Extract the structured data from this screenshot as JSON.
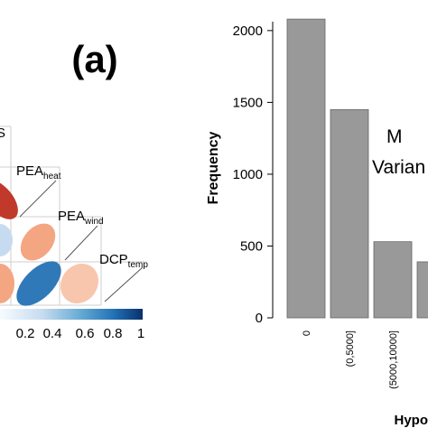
{
  "panel_label": "(a)",
  "correlation_plot": {
    "variables": [
      {
        "id": "s_partial",
        "label": "S"
      },
      {
        "id": "pea_heat",
        "label": "PEA",
        "sub": "heat"
      },
      {
        "id": "pea_wind",
        "label": "PEA",
        "sub": "wind"
      },
      {
        "id": "dcp_temp",
        "label": "DCP",
        "sub": "temp"
      }
    ],
    "colorbar_ticks": [
      "0.2",
      "0.4",
      "0.6",
      "0.8",
      "1"
    ],
    "colors": {
      "positive_strong": "#2166ac",
      "positive_light": "#c6dbef",
      "negative_light": "#f4a582",
      "negative_strong": "#d6604d",
      "deep_red": "#b2182b"
    }
  },
  "chart_data": {
    "type": "bar",
    "title": "",
    "xlabel": "Hypo",
    "ylabel": "Frequency",
    "categories": [
      "0",
      "(0,5000]",
      "(5000,10000]",
      ""
    ],
    "values": [
      2080,
      1450,
      530,
      390
    ],
    "ylim": [
      0,
      2150
    ],
    "yticks": [
      "0",
      "500",
      "1000",
      "1500",
      "2000"
    ],
    "bar_color": "#999999",
    "annotation_lines": [
      "M",
      "Varian"
    ],
    "grid": false
  }
}
